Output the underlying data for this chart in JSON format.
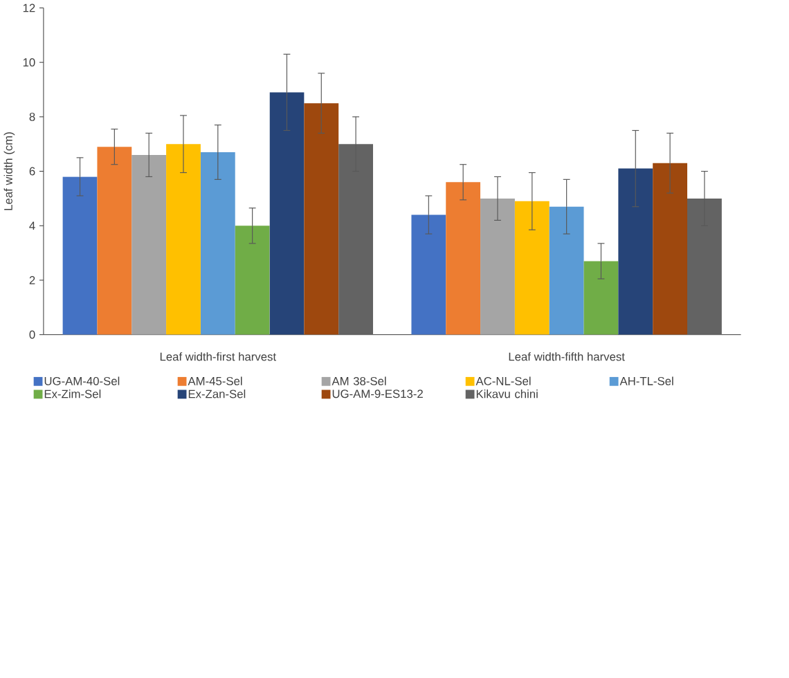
{
  "chart_data": {
    "type": "bar",
    "ylabel": "Leaf width (cm)",
    "categories": [
      "Leaf width-first harvest",
      "Leaf width-fifth harvest"
    ],
    "series": [
      {
        "name": "UG-AM-40-Sel",
        "color": "#4472c4",
        "values": [
          5.8,
          4.4
        ],
        "errors": [
          0.7,
          0.7
        ]
      },
      {
        "name": "AM-45-Sel",
        "color": "#ed7d31",
        "values": [
          6.9,
          5.6
        ],
        "errors": [
          0.65,
          0.65
        ]
      },
      {
        "name": "AM 38-Sel",
        "color": "#a5a5a5",
        "values": [
          6.6,
          5.0
        ],
        "errors": [
          0.8,
          0.8
        ]
      },
      {
        "name": "AC-NL-Sel",
        "color": "#ffc000",
        "values": [
          7.0,
          4.9
        ],
        "errors": [
          1.05,
          1.05
        ]
      },
      {
        "name": "AH-TL-Sel",
        "color": "#5b9bd5",
        "values": [
          6.7,
          4.7
        ],
        "errors": [
          1.0,
          1.0
        ]
      },
      {
        "name": "Ex-Zim-Sel",
        "color": "#70ad47",
        "values": [
          4.0,
          2.7
        ],
        "errors": [
          0.65,
          0.65
        ]
      },
      {
        "name": "Ex-Zan-Sel",
        "color": "#264478",
        "values": [
          8.9,
          6.1
        ],
        "errors": [
          1.4,
          1.4
        ]
      },
      {
        "name": "UG-AM-9-ES13-2",
        "color": "#9e480e",
        "values": [
          8.5,
          6.3
        ],
        "errors": [
          1.1,
          1.1
        ]
      },
      {
        "name": "Kikavu chini",
        "color": "#636363",
        "values": [
          7.0,
          5.0
        ],
        "errors": [
          1.0,
          1.0
        ]
      }
    ],
    "ylim": [
      0,
      12
    ],
    "yticks": [
      0,
      2,
      4,
      6,
      8,
      10,
      12
    ],
    "grid": false,
    "legend": "bottom"
  }
}
